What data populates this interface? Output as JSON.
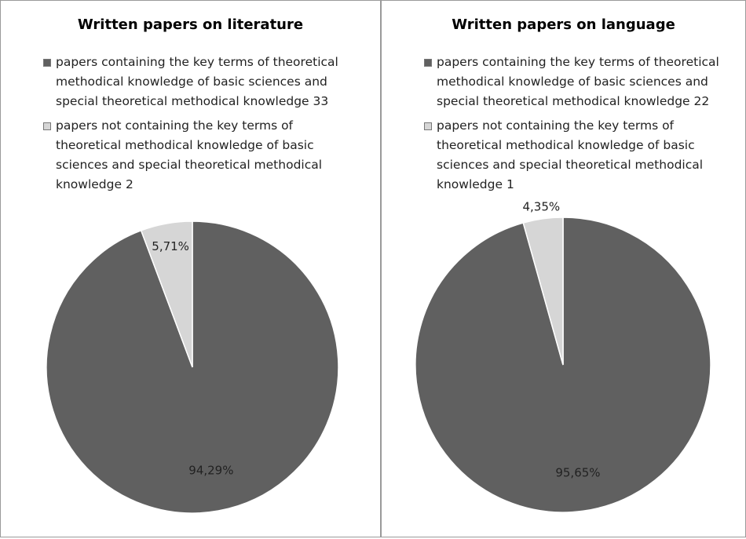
{
  "chart_data": [
    {
      "type": "pie",
      "title": "Written papers on literature",
      "categories": [
        "papers containing the key terms of theoretical methodical knowledge of basic sciences and special theoretical methodical knowledge 33",
        "papers not containing the key terms of theoretical methodical knowledge of basic sciences and special theoretical methodical knowledge 2"
      ],
      "values": [
        94.29,
        5.71
      ],
      "value_labels": [
        "94,29%",
        "5,71%"
      ],
      "colors": [
        "#606060",
        "#d6d6d6"
      ],
      "legend": "top"
    },
    {
      "type": "pie",
      "title": "Written papers on language",
      "categories": [
        "papers containing the key terms of theoretical methodical knowledge of basic sciences and special theoretical methodical knowledge 22",
        "papers not containing the key terms of theoretical methodical knowledge of basic sciences and special theoretical methodical knowledge 1"
      ],
      "values": [
        95.65,
        4.35
      ],
      "value_labels": [
        "95,65%",
        "4,35%"
      ],
      "colors": [
        "#606060",
        "#d6d6d6"
      ],
      "legend": "top"
    }
  ]
}
